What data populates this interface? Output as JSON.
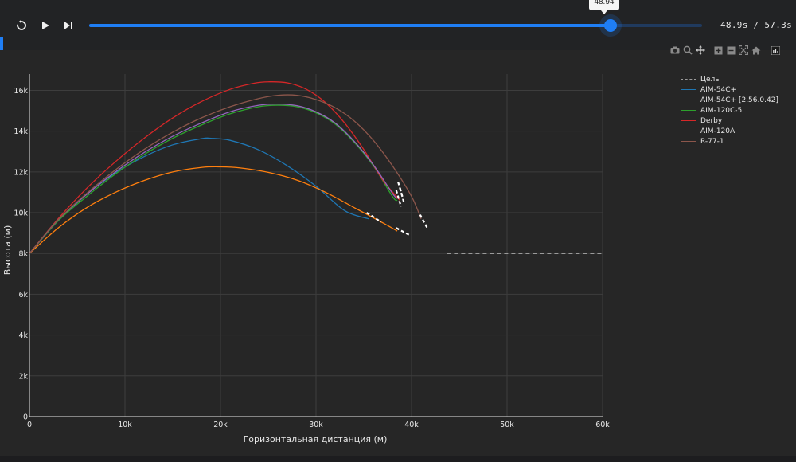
{
  "player": {
    "slider_value": 0.8506,
    "tooltip": "48.94",
    "time_text": "48.9s / 57.3s"
  },
  "modebar": {
    "icons": [
      "camera-icon",
      "zoom-icon",
      "pan-icon",
      "zoom-in-icon",
      "zoom-out-icon",
      "autoscale-icon",
      "reset-axes-icon",
      "plotly-logo-icon"
    ]
  },
  "colors": {
    "accent": "#1f7ef5",
    "background": "#262626",
    "grid": "#3d3d3d"
  },
  "chart_data": {
    "type": "line",
    "xlabel": "Горизонтальная дистанция (м)",
    "ylabel": "Высота (м)",
    "xlim": [
      0,
      60000
    ],
    "ylim": [
      0,
      16800
    ],
    "xticks": [
      0,
      10000,
      20000,
      30000,
      40000,
      50000,
      60000
    ],
    "xtick_labels": [
      "0",
      "10k",
      "20k",
      "30k",
      "40k",
      "50k",
      "60k"
    ],
    "yticks": [
      0,
      2000,
      4000,
      6000,
      8000,
      10000,
      12000,
      14000,
      16000
    ],
    "ytick_labels": [
      "0",
      "2k",
      "4k",
      "6k",
      "8k",
      "10k",
      "12k",
      "14k",
      "16k"
    ],
    "grid": true,
    "legend_position": "top-right",
    "series": [
      {
        "name": "Цель",
        "color": "#9a9a9a",
        "dash": true,
        "x": [
          43700,
          60000
        ],
        "y": [
          8000,
          8000
        ]
      },
      {
        "name": "AIM-54C+",
        "color": "#1f77b4",
        "x": [
          0,
          3000,
          6000,
          9000,
          12000,
          15000,
          18000,
          19000,
          21000,
          24000,
          27000,
          30000,
          33000,
          35500
        ],
        "y": [
          8000,
          9600,
          10900,
          11950,
          12750,
          13330,
          13630,
          13650,
          13550,
          13080,
          12300,
          11300,
          10100,
          9700
        ],
        "arrow": {
          "x": [
            35300,
            36800
          ],
          "y": [
            10000,
            9550
          ]
        }
      },
      {
        "name": "AIM-54C+ [2.56.0.42]",
        "color": "#ff7f0e",
        "x": [
          0,
          3000,
          6000,
          9000,
          12000,
          15000,
          18000,
          20000,
          22000,
          25000,
          28000,
          31000,
          34000,
          37000,
          38500
        ],
        "y": [
          8000,
          9250,
          10250,
          11000,
          11580,
          12000,
          12220,
          12250,
          12200,
          11980,
          11600,
          11000,
          10250,
          9500,
          9100
        ],
        "arrow": {
          "x": [
            38400,
            39800
          ],
          "y": [
            9250,
            8900
          ]
        }
      },
      {
        "name": "AIM-120C-5",
        "color": "#2ca02c",
        "x": [
          0,
          3000,
          6000,
          9000,
          12000,
          15000,
          18000,
          21000,
          24000,
          26000,
          28000,
          30000,
          32000,
          34000,
          36000,
          38000,
          38500
        ],
        "y": [
          8000,
          9600,
          10800,
          11900,
          12850,
          13650,
          14300,
          14850,
          15200,
          15270,
          15200,
          14900,
          14350,
          13450,
          12300,
          10800,
          10600
        ],
        "arrow": {
          "x": [
            38400,
            38900
          ],
          "y": [
            11100,
            10300
          ]
        }
      },
      {
        "name": "Derby",
        "color": "#d62728",
        "x": [
          0,
          3000,
          6000,
          9000,
          12000,
          15000,
          18000,
          21000,
          23500,
          25000,
          27000,
          29000,
          31000,
          33000,
          35000,
          37000,
          38800
        ],
        "y": [
          8000,
          9700,
          11200,
          12500,
          13650,
          14650,
          15450,
          16050,
          16350,
          16420,
          16370,
          16050,
          15400,
          14400,
          13100,
          11600,
          10600
        ],
        "arrow": {
          "x": [
            38600,
            39100
          ],
          "y": [
            11500,
            10700
          ]
        }
      },
      {
        "name": "AIM-120A",
        "color": "#9467bd",
        "x": [
          0,
          3000,
          6000,
          9000,
          12000,
          15000,
          18000,
          21000,
          24000,
          26000,
          28000,
          30000,
          32000,
          34000,
          36000,
          38000,
          38500
        ],
        "y": [
          8000,
          9650,
          10900,
          12000,
          12950,
          13750,
          14400,
          14950,
          15270,
          15330,
          15250,
          14950,
          14400,
          13500,
          12350,
          10950,
          10700
        ],
        "arrow": {
          "x": [
            38800,
            39200
          ],
          "y": [
            11200,
            10500
          ]
        }
      },
      {
        "name": "R-77-1",
        "color": "#8c564b",
        "x": [
          0,
          3000,
          6000,
          9000,
          12000,
          15000,
          18000,
          21000,
          24000,
          26000,
          28000,
          30000,
          32000,
          34000,
          36000,
          38000,
          40000,
          41000
        ],
        "y": [
          8000,
          9650,
          10950,
          12100,
          13100,
          13950,
          14650,
          15200,
          15600,
          15760,
          15760,
          15550,
          15150,
          14500,
          13550,
          12300,
          10800,
          9700
        ],
        "arrow": {
          "x": [
            40900,
            41700
          ],
          "y": [
            9900,
            9200
          ]
        }
      }
    ]
  }
}
